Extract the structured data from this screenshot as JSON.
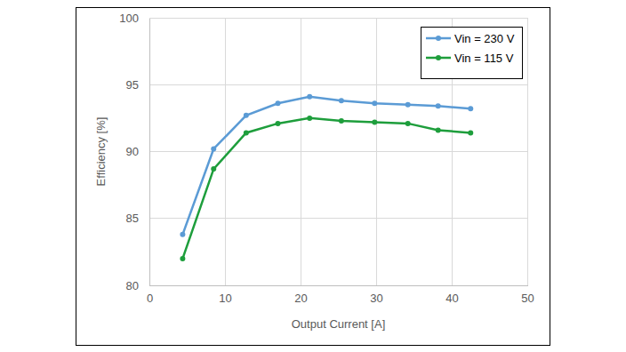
{
  "chart_data": {
    "type": "line",
    "x_label": "Output Current  [A]",
    "y_label": "Efficiency  [%]",
    "x": [
      4.4,
      8.5,
      12.8,
      17,
      21.2,
      25.4,
      29.8,
      34.2,
      38.2,
      42.5
    ],
    "series": [
      {
        "name": "Vin = 230 V",
        "color": "#5b9bd5",
        "marker": "circle",
        "values": [
          83.8,
          90.2,
          92.7,
          93.6,
          94.1,
          93.8,
          93.6,
          93.5,
          93.4,
          93.2
        ]
      },
      {
        "name": "Vin = 115 V",
        "color": "#1e9e3c",
        "marker": "circle",
        "values": [
          82.0,
          88.7,
          91.4,
          92.1,
          92.5,
          92.3,
          92.2,
          92.1,
          91.6,
          91.4
        ]
      }
    ],
    "xlim": [
      0,
      50
    ],
    "ylim": [
      80,
      100
    ],
    "xticks": [
      0,
      10,
      20,
      30,
      40,
      50
    ],
    "yticks": [
      80,
      85,
      90,
      95,
      100
    ],
    "grid": true,
    "legend": "upper right"
  }
}
